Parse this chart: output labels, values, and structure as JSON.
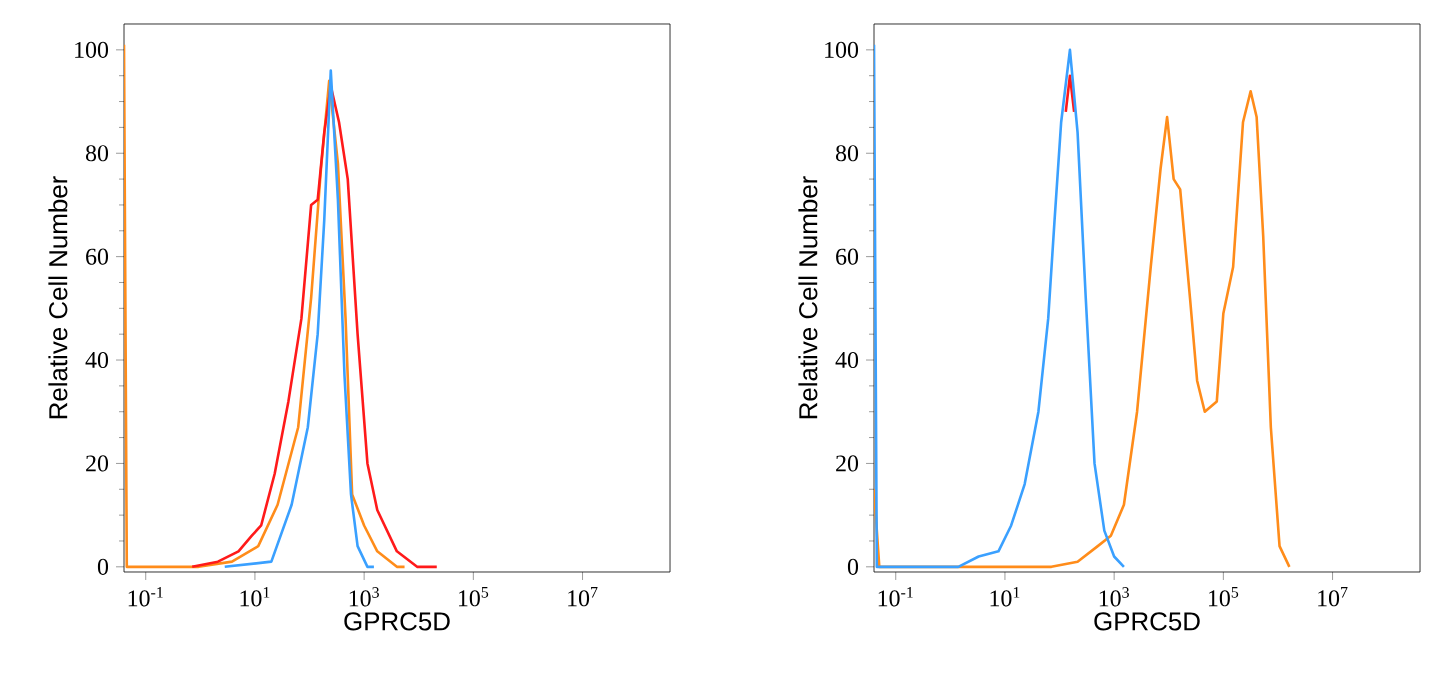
{
  "chart_data": [
    {
      "type": "line",
      "xlabel": "GPRC5D",
      "ylabel": "Relative Cell Number",
      "log": "x",
      "xlim": [
        0.04,
        400000000
      ],
      "ylim": [
        -1,
        105
      ],
      "xticks": [
        {
          "value": 0.1,
          "label": "10$^{-1}$"
        },
        {
          "value": 10,
          "label": "10$^{1}$"
        },
        {
          "value": 1000,
          "label": "10$^{3}$"
        },
        {
          "value": 100000,
          "label": "10$^{5}$"
        },
        {
          "value": 10000000,
          "label": "10$^{7}$"
        }
      ],
      "yticks": [
        0,
        20,
        40,
        60,
        80,
        100
      ],
      "series": [
        {
          "color": "#ff8c1a",
          "x": [
            0.04,
            0.045,
            0.93,
            3.8,
            11.5,
            26,
            62,
            107,
            162,
            229,
            331,
            457,
            603,
            1000,
            1740,
            3980,
            5500
          ],
          "values": [
            101,
            0,
            0,
            1,
            4,
            12,
            27,
            52,
            77,
            94,
            78,
            48,
            14,
            8,
            3,
            0,
            0
          ]
        },
        {
          "color": "#ff1a1a",
          "x": [
            0.71,
            2.1,
            5,
            8.7,
            13,
            23,
            41,
            71,
            107,
            141,
            186,
            245,
            347,
            501,
            759,
            1150,
            1740,
            3980,
            9330,
            21400
          ],
          "values": [
            0,
            1,
            3,
            6,
            8,
            18,
            32,
            48,
            70,
            71,
            84,
            93,
            86,
            75,
            45,
            20,
            11,
            3,
            0,
            0
          ]
        },
        {
          "color": "#3aa0ff",
          "x": [
            2.8,
            20,
            47,
            93,
            141,
            186,
            245,
            331,
            437,
            575,
            759,
            1150,
            1510
          ],
          "values": [
            0,
            1,
            12,
            27,
            45,
            67,
            96,
            71,
            37,
            14,
            4,
            0,
            0
          ]
        }
      ]
    },
    {
      "type": "line",
      "xlabel": "GPRC5D",
      "ylabel": "Relative Cell Number",
      "log": "x",
      "xlim": [
        0.04,
        400000000
      ],
      "ylim": [
        -1,
        105
      ],
      "xticks": [
        {
          "value": 0.1,
          "label": "10$^{-1}$"
        },
        {
          "value": 10,
          "label": "10$^{1}$"
        },
        {
          "value": 1000,
          "label": "10$^{3}$"
        },
        {
          "value": 100000,
          "label": "10$^{5}$"
        },
        {
          "value": 10000000,
          "label": "10$^{7}$"
        }
      ],
      "yticks": [
        0,
        20,
        40,
        60,
        80,
        100
      ],
      "series": [
        {
          "color": "#ff8c1a",
          "x": [
            0.04,
            0.05,
            71,
            214,
            501,
            871,
            1510,
            2630,
            4680,
            7080,
            9330,
            12300,
            16200,
            24500,
            33100,
            45700,
            75900,
            100000,
            151000,
            229000,
            316000,
            407000,
            537000,
            741000,
            1070000,
            1620000
          ],
          "values": [
            15,
            0,
            0,
            1,
            4,
            6,
            12,
            30,
            58,
            77,
            87,
            75,
            73,
            52,
            36,
            30,
            32,
            49,
            58,
            86,
            92,
            87,
            64,
            27,
            4,
            0
          ]
        },
        {
          "color": "#ff1a1a",
          "x": [
            130,
            155,
            185
          ],
          "values": [
            88,
            95,
            88
          ]
        },
        {
          "color": "#3aa0ff",
          "x": [
            0.04,
            0.045,
            0.47,
            1.4,
            3.3,
            7.6,
            13,
            23,
            41,
            62,
            81,
            107,
            155,
            214,
            302,
            437,
            661,
            1000,
            1510
          ],
          "values": [
            101,
            0,
            0,
            0,
            2,
            3,
            8,
            16,
            30,
            48,
            67,
            86,
            100,
            84,
            52,
            20,
            7,
            2,
            0
          ]
        }
      ]
    }
  ]
}
